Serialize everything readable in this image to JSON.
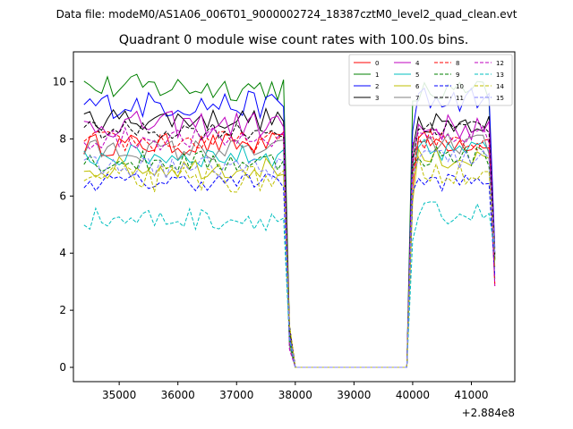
{
  "suptitle": "Data file: modeM0/AS1A06_006T01_9000002724_18387cztM0_level2_quad_clean.evt",
  "chart_data": {
    "type": "line",
    "title": "Quadrant 0 module wise count rates with 100.0s bins.",
    "xlabel": "",
    "ylabel": "",
    "x_offset_label": "+2.884e8",
    "xlim": [
      34220,
      41740
    ],
    "ylim": [
      -0.5,
      11.05
    ],
    "xticks": [
      35000,
      36000,
      37000,
      38000,
      39000,
      40000,
      41000
    ],
    "yticks": [
      0,
      2,
      4,
      6,
      8,
      10
    ],
    "grid": false,
    "legend": {
      "placement": "top-right",
      "columns": 4
    },
    "bin_seconds": 100,
    "x_start": 34400,
    "x_step": 100,
    "gap_start_index": 35,
    "gap_end_index": 56,
    "series": [
      {
        "name": "0",
        "color": "#ff0000",
        "dash": "solid",
        "level_pre": 7.8,
        "level_post": 7.9,
        "var": 0.25
      },
      {
        "name": "1",
        "color": "#008000",
        "dash": "solid",
        "level_pre": 9.8,
        "level_post": 9.6,
        "var": 0.3
      },
      {
        "name": "2",
        "color": "#0000ff",
        "dash": "solid",
        "level_pre": 9.2,
        "level_post": 9.4,
        "var": 0.3
      },
      {
        "name": "3",
        "color": "#000000",
        "dash": "solid",
        "level_pre": 8.7,
        "level_post": 8.6,
        "var": 0.25
      },
      {
        "name": "4",
        "color": "#bf00bf",
        "dash": "solid",
        "level_pre": 8.5,
        "level_post": 8.4,
        "var": 0.3
      },
      {
        "name": "5",
        "color": "#00bfbf",
        "dash": "solid",
        "level_pre": 7.4,
        "level_post": 7.6,
        "var": 0.25
      },
      {
        "name": "6",
        "color": "#bfbf00",
        "dash": "solid",
        "level_pre": 7.0,
        "level_post": 7.3,
        "var": 0.25
      },
      {
        "name": "7",
        "color": "#808080",
        "dash": "solid",
        "level_pre": 7.6,
        "level_post": 7.8,
        "var": 0.25
      },
      {
        "name": "8",
        "color": "#ff0000",
        "dash": "dashed",
        "level_pre": 7.9,
        "level_post": 8.0,
        "var": 0.25
      },
      {
        "name": "9",
        "color": "#008000",
        "dash": "dashed",
        "level_pre": 7.2,
        "level_post": 7.4,
        "var": 0.25
      },
      {
        "name": "10",
        "color": "#0000ff",
        "dash": "dashed",
        "level_pre": 6.5,
        "level_post": 6.5,
        "var": 0.2
      },
      {
        "name": "11",
        "color": "#000000",
        "dash": "dashed",
        "level_pre": 8.3,
        "level_post": 8.4,
        "var": 0.2
      },
      {
        "name": "12",
        "color": "#bf00bf",
        "dash": "dashed",
        "level_pre": 8.0,
        "level_post": 8.1,
        "var": 0.25
      },
      {
        "name": "13",
        "color": "#00bfbf",
        "dash": "dashed",
        "level_pre": 5.2,
        "level_post": 5.4,
        "var": 0.25
      },
      {
        "name": "14",
        "color": "#bfbf00",
        "dash": "dashed",
        "level_pre": 6.6,
        "level_post": 6.9,
        "var": 0.3
      },
      {
        "name": "15",
        "color": "#8080ff",
        "dash": "dashed",
        "level_pre": 7.0,
        "level_post": 7.3,
        "var": 0.25
      }
    ]
  }
}
